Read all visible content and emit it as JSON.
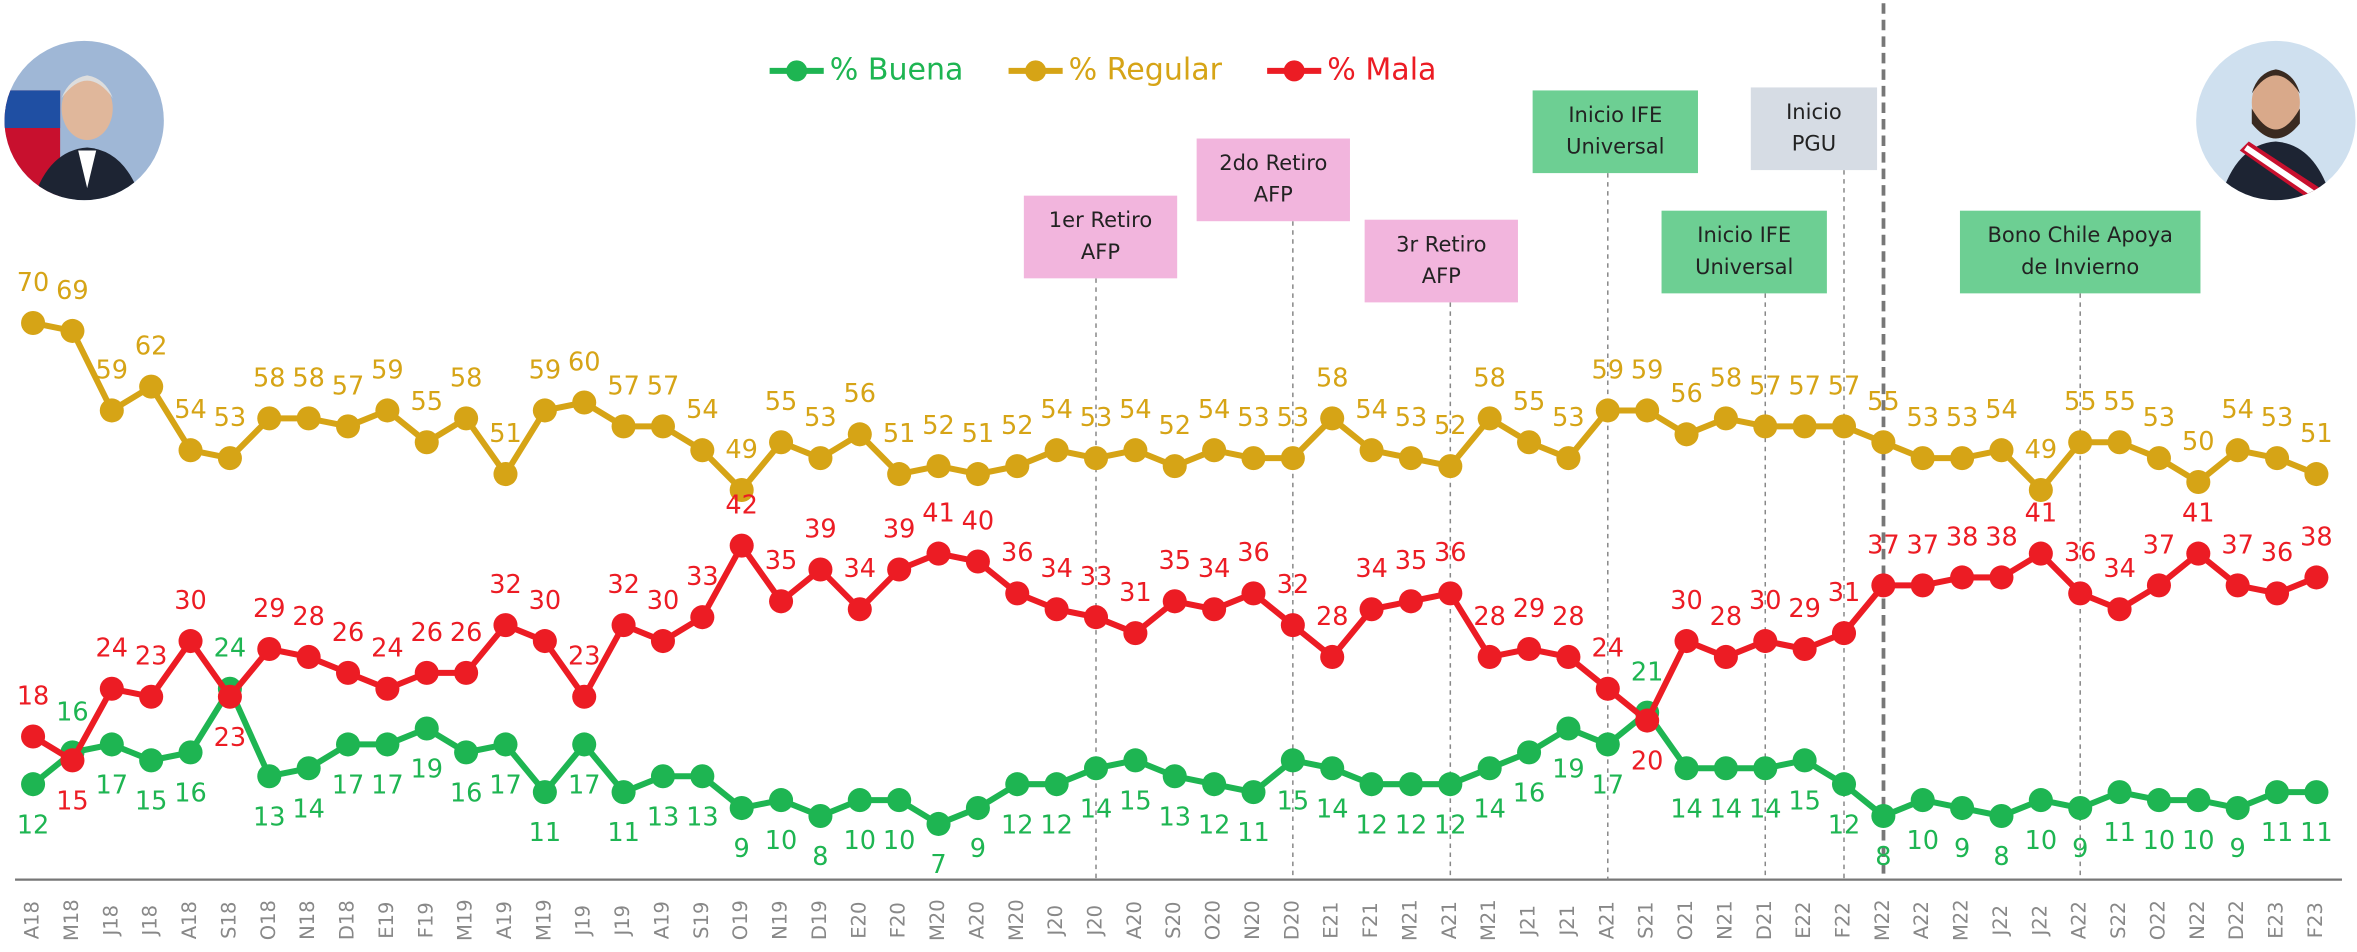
{
  "chart_data": {
    "type": "line",
    "categories": [
      "A18",
      "M18",
      "J18",
      "J18",
      "A18",
      "S18",
      "O18",
      "N18",
      "D18",
      "E19",
      "F19",
      "M19",
      "A19",
      "M19",
      "J19",
      "J19",
      "A19",
      "S19",
      "O19",
      "N19",
      "D19",
      "E20",
      "F20",
      "M20",
      "A20",
      "M20",
      "J20",
      "J20",
      "A20",
      "S20",
      "O20",
      "N20",
      "D20",
      "E21",
      "F21",
      "M21",
      "A21",
      "M21",
      "J21",
      "J21",
      "A21",
      "S21",
      "O21",
      "N21",
      "D21",
      "E22",
      "F22",
      "M22",
      "A22",
      "M22",
      "J22",
      "J22",
      "A22",
      "S22",
      "O22",
      "N22",
      "D22",
      "E23",
      "F23"
    ],
    "series": [
      {
        "name": "% Buena",
        "color": "#1eb552",
        "values": [
          12,
          16,
          17,
          15,
          16,
          24,
          13,
          14,
          17,
          17,
          19,
          16,
          17,
          11,
          17,
          11,
          13,
          13,
          9,
          10,
          8,
          10,
          10,
          7,
          9,
          12,
          12,
          14,
          15,
          13,
          12,
          11,
          15,
          14,
          12,
          12,
          12,
          14,
          16,
          19,
          17,
          21,
          14,
          14,
          14,
          15,
          12,
          8,
          10,
          9,
          8,
          10,
          9,
          11,
          10,
          10,
          9,
          11,
          11
        ]
      },
      {
        "name": "% Regular",
        "color": "#d6a416",
        "values": [
          70,
          69,
          59,
          62,
          54,
          53,
          58,
          58,
          57,
          59,
          55,
          58,
          51,
          59,
          60,
          57,
          57,
          54,
          49,
          55,
          53,
          56,
          51,
          52,
          51,
          52,
          54,
          53,
          54,
          52,
          54,
          53,
          53,
          58,
          54,
          53,
          52,
          58,
          55,
          53,
          59,
          59,
          56,
          58,
          57,
          57,
          57,
          55,
          53,
          53,
          54,
          49,
          55,
          55,
          53,
          50,
          54,
          53,
          51
        ]
      },
      {
        "name": "% Mala",
        "color": "#ec1c24",
        "values": [
          18,
          15,
          24,
          23,
          30,
          23,
          29,
          28,
          26,
          24,
          26,
          26,
          32,
          30,
          23,
          32,
          30,
          33,
          42,
          35,
          39,
          34,
          39,
          41,
          40,
          36,
          34,
          33,
          31,
          35,
          34,
          36,
          32,
          28,
          34,
          35,
          36,
          28,
          29,
          28,
          24,
          20,
          30,
          28,
          30,
          29,
          31,
          37,
          37,
          38,
          38,
          41,
          36,
          34,
          37,
          41,
          37,
          36,
          38
        ]
      }
    ],
    "annotations": [
      {
        "lines": [
          "1er Retiro",
          "AFP"
        ],
        "at": 27,
        "color": "#f2b5dd"
      },
      {
        "lines": [
          "2do Retiro",
          "AFP"
        ],
        "at": 32,
        "color": "#f2b5dd"
      },
      {
        "lines": [
          "3r Retiro",
          "AFP"
        ],
        "at": 36,
        "color": "#f2b5dd"
      },
      {
        "lines": [
          "Inicio IFE",
          "Universal"
        ],
        "at": 40,
        "color": "#6dcf93"
      },
      {
        "lines": [
          "Inicio IFE",
          "Universal"
        ],
        "at": 44,
        "color": "#6dcf93"
      },
      {
        "lines": [
          "Inicio",
          "PGU"
        ],
        "at": 46,
        "color": "#d6dce4"
      },
      {
        "lines": [
          "Bono Chile Apoya",
          "de Invierno"
        ],
        "at": 52,
        "color": "#6dcf93"
      }
    ]
  }
}
